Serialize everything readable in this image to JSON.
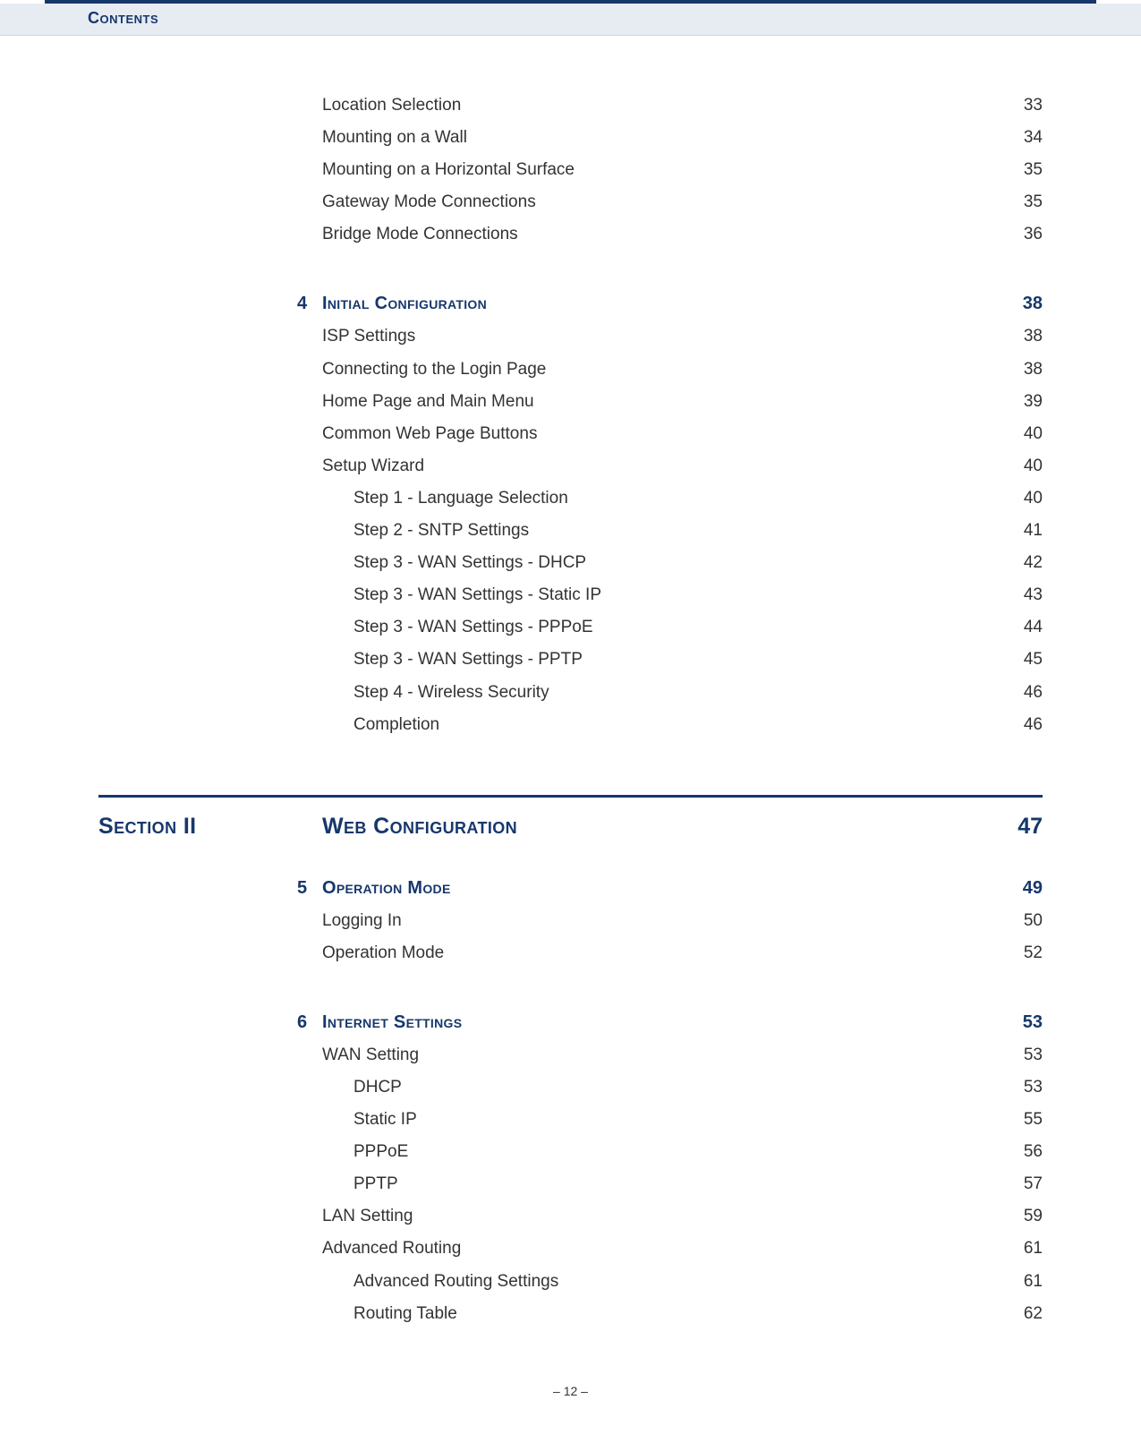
{
  "header": {
    "title": "Contents"
  },
  "intro_items": [
    {
      "label": "Location Selection",
      "page": "33"
    },
    {
      "label": "Mounting on a Wall",
      "page": "34"
    },
    {
      "label": "Mounting on a Horizontal Surface",
      "page": "35"
    },
    {
      "label": "Gateway Mode Connections",
      "page": "35"
    },
    {
      "label": "Bridge Mode Connections",
      "page": "36"
    }
  ],
  "chapter4": {
    "num": "4",
    "title": "Initial Configuration",
    "page": "38",
    "items": [
      {
        "label": "ISP Settings",
        "page": "38",
        "level": 1
      },
      {
        "label": "Connecting to the Login Page",
        "page": "38",
        "level": 1
      },
      {
        "label": "Home Page and Main Menu",
        "page": "39",
        "level": 1
      },
      {
        "label": "Common Web Page Buttons",
        "page": "40",
        "level": 1
      },
      {
        "label": "Setup Wizard",
        "page": "40",
        "level": 1
      },
      {
        "label": "Step 1 - Language Selection",
        "page": "40",
        "level": 2
      },
      {
        "label": "Step 2 - SNTP Settings",
        "page": "41",
        "level": 2
      },
      {
        "label": "Step 3 - WAN Settings - DHCP",
        "page": "42",
        "level": 2
      },
      {
        "label": "Step 3 - WAN Settings - Static IP",
        "page": "43",
        "level": 2
      },
      {
        "label": "Step 3 - WAN Settings - PPPoE",
        "page": "44",
        "level": 2
      },
      {
        "label": "Step 3 - WAN Settings - PPTP",
        "page": "45",
        "level": 2
      },
      {
        "label": "Step 4 - Wireless Security",
        "page": "46",
        "level": 2
      },
      {
        "label": "Completion",
        "page": "46",
        "level": 2
      }
    ]
  },
  "section2": {
    "label": "Section II",
    "title": "Web Configuration",
    "page": "47"
  },
  "chapter5": {
    "num": "5",
    "title": "Operation Mode",
    "page": "49",
    "items": [
      {
        "label": "Logging In",
        "page": "50",
        "level": 1
      },
      {
        "label": "Operation Mode",
        "page": "52",
        "level": 1
      }
    ]
  },
  "chapter6": {
    "num": "6",
    "title": "Internet Settings",
    "page": "53",
    "items": [
      {
        "label": "WAN Setting",
        "page": "53",
        "level": 1
      },
      {
        "label": "DHCP",
        "page": "53",
        "level": 2
      },
      {
        "label": "Static IP",
        "page": "55",
        "level": 2
      },
      {
        "label": "PPPoE",
        "page": "56",
        "level": 2
      },
      {
        "label": "PPTP",
        "page": "57",
        "level": 2
      },
      {
        "label": "LAN Setting",
        "page": "59",
        "level": 1
      },
      {
        "label": "Advanced Routing",
        "page": "61",
        "level": 1
      },
      {
        "label": "Advanced Routing Settings",
        "page": "61",
        "level": 2
      },
      {
        "label": "Routing Table",
        "page": "62",
        "level": 2
      }
    ]
  },
  "footer": {
    "page_number": "–  12  –"
  },
  "colors": {
    "accent": "#16376c",
    "band_bg": "#e7ecf3",
    "body_text": "#333333"
  }
}
